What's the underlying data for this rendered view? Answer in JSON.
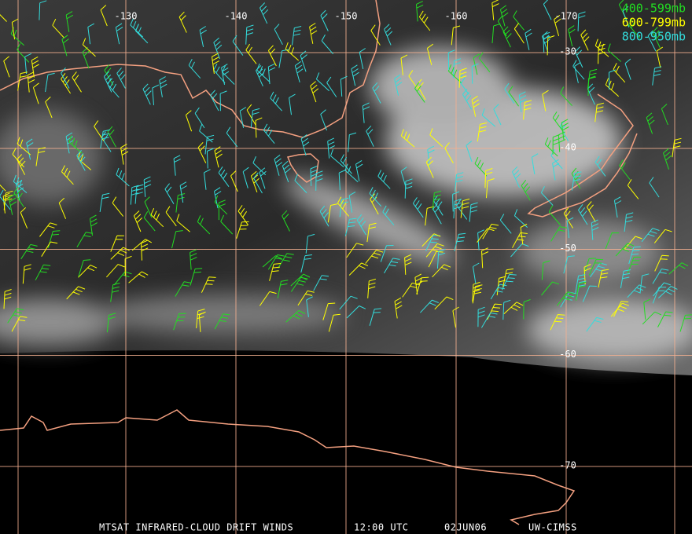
{
  "map": {
    "legend": [
      {
        "label": "400-599mb",
        "color": "#22dd22"
      },
      {
        "label": "600-799mb",
        "color": "#ffff00"
      },
      {
        "label": "800-950mb",
        "color": "#33dddd"
      }
    ],
    "longitudes": [
      -130,
      -140,
      -150,
      -160,
      -170
    ],
    "latitudes": [
      -30,
      -40,
      -50,
      -60,
      -70
    ],
    "footer": [
      "MTSAT INFRARED-CLOUD DRIFT WINDS",
      "12:00 UTC",
      "02JUN06",
      "UW-CIMSS"
    ]
  }
}
